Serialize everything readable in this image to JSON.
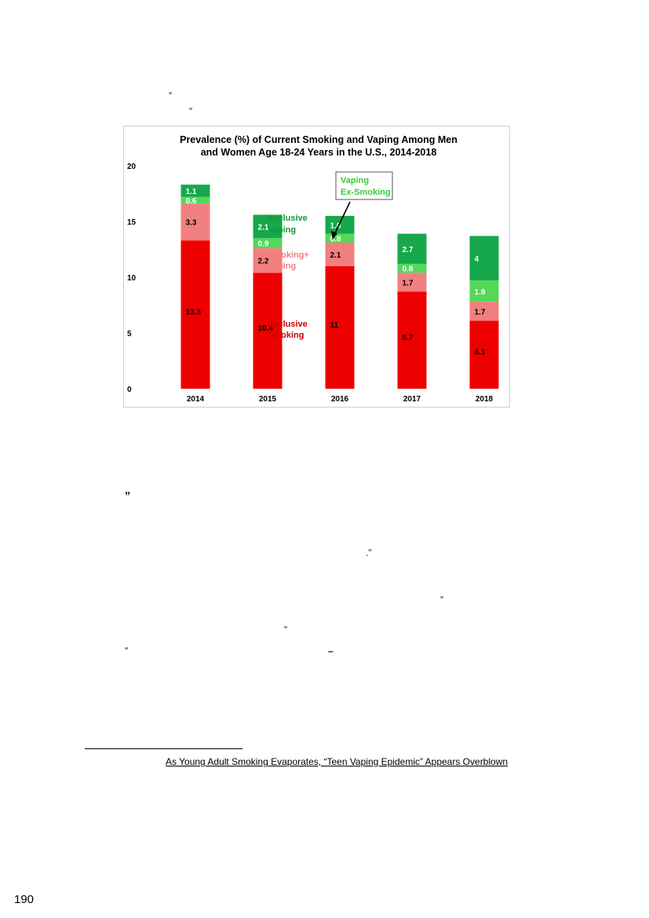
{
  "marks": {
    "quote_1": "”",
    "quote_2": "”",
    "quote_3": "”",
    "quote_4": ".”",
    "quote_5": "”",
    "quote_6": "”",
    "quote_7": "”",
    "dash": "–"
  },
  "footnote": "As Young Adult Smoking Evaporates, “Teen Vaping Epidemic” Appears Overblown",
  "page_number": "190",
  "colors": {
    "exclusive_smoking": "#ee0000",
    "smoking_plus_vaping": "#f27f7f",
    "vaping_ex_smoking": "#54d858",
    "exclusive_vaping": "#16a84a",
    "label_smoking": "#cc0000",
    "label_dual": "#f27f7f",
    "label_ex": "#3cc83c",
    "label_vaping": "#0f9a3c"
  },
  "chart_data": {
    "type": "bar",
    "stacked": true,
    "title": "Prevalence (%) of Current Smoking and Vaping Among Men and Women Age 18-24 Years in the U.S., 2014-2018",
    "title_lines": [
      "Prevalence (%) of Current Smoking and Vaping Among Men",
      "and Women Age 18-24 Years in the U.S., 2014-2018"
    ],
    "categories": [
      "2014",
      "2015",
      "2016",
      "2017",
      "2018"
    ],
    "series": [
      {
        "name": "Exclusive Smoking",
        "label_lines": [
          "Exclusive",
          "Smoking"
        ],
        "values": [
          13.3,
          10.4,
          11,
          8.7,
          6.1
        ],
        "value_labels": [
          "13.3",
          "10.4",
          "11",
          "8.7",
          "6.1"
        ]
      },
      {
        "name": "Smoking+ Vaping",
        "label_lines": [
          "Smoking+",
          "Vaping"
        ],
        "values": [
          3.3,
          2.2,
          2.1,
          1.7,
          1.7
        ],
        "value_labels": [
          "3.3",
          "2.2",
          "2.1",
          "1.7",
          "1.7"
        ]
      },
      {
        "name": "Vaping Ex-Smoking",
        "label_lines": [
          "Vaping",
          "Ex-Smoking"
        ],
        "values": [
          0.6,
          0.9,
          0.8,
          0.8,
          1.9
        ],
        "value_labels": [
          "0.6",
          "0.9",
          "0.8",
          "0.8",
          "1.9"
        ]
      },
      {
        "name": "Exclusive Vaping",
        "label_lines": [
          "Exclusive",
          "Vaping"
        ],
        "values": [
          1.1,
          2.1,
          1.6,
          2.7,
          4
        ],
        "value_labels": [
          "1.1",
          "2.1",
          "1.6",
          "2.7",
          "4"
        ]
      }
    ],
    "yticks": [
      "0",
      "5",
      "10",
      "15",
      "20"
    ],
    "ylim": [
      0,
      20
    ],
    "grid": false,
    "legend": "inline labels next to 2015 bar; callout box top-center for Vaping Ex-Smoking"
  }
}
